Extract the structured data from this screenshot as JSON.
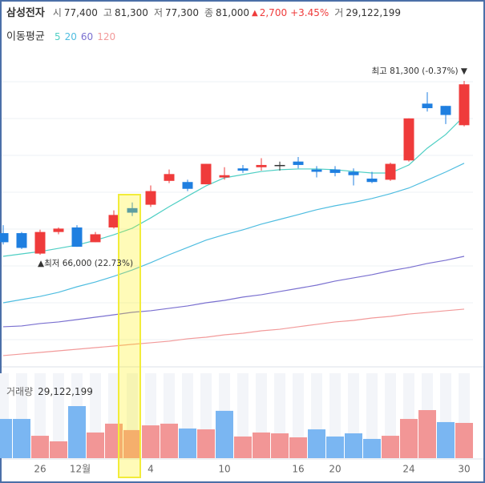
{
  "chart_data": {
    "type": "candlestick",
    "title": "삼성전자",
    "header": [
      {
        "label": "시",
        "value": "77,400"
      },
      {
        "label": "고",
        "value": "81,300"
      },
      {
        "label": "저",
        "value": "77,300"
      },
      {
        "label": "종",
        "value": "81,000"
      }
    ],
    "change": {
      "arrow": "▲",
      "amount": "2,700",
      "percent": "+3.45%"
    },
    "header_volume": {
      "label": "거",
      "value": "29,122,199"
    },
    "ma_label": "이동평균",
    "categories": [
      null,
      null,
      "26",
      null,
      "12월",
      null,
      null,
      null,
      "4",
      null,
      null,
      null,
      "10",
      null,
      null,
      null,
      "16",
      null,
      "20",
      null,
      null,
      null,
      "24",
      null,
      null,
      "30"
    ],
    "open": [
      67900,
      67900,
      66100,
      68000,
      68400,
      67100,
      68400,
      70100,
      70400,
      72500,
      72400,
      72200,
      72800,
      73600,
      73700,
      73900,
      74200,
      73500,
      73500,
      73300,
      72700,
      72600,
      74300,
      79300,
      79100,
      77400
    ],
    "high": [
      68600,
      68000,
      68200,
      68400,
      68600,
      68000,
      69900,
      70600,
      72100,
      73500,
      72600,
      74000,
      73700,
      73900,
      74500,
      74200,
      74600,
      73800,
      73800,
      73600,
      73300,
      74100,
      78000,
      80300,
      79100,
      81300
    ],
    "low": [
      66900,
      66500,
      66000,
      67800,
      66700,
      67100,
      68300,
      69400,
      70200,
      72300,
      71600,
      72200,
      72600,
      73200,
      73400,
      73400,
      73600,
      72800,
      72900,
      72100,
      72300,
      72500,
      74200,
      78600,
      77500,
      77300
    ],
    "close": [
      67100,
      66600,
      68000,
      68300,
      66700,
      67800,
      69500,
      69700,
      71600,
      73100,
      71800,
      74000,
      73000,
      73400,
      73900,
      73900,
      73900,
      73300,
      73200,
      73000,
      72400,
      74000,
      78000,
      78900,
      78300,
      81000
    ],
    "up_color": "#ef3b3b",
    "down_color": "#1f7fe0",
    "flat_color": "#333333",
    "series": [
      {
        "name": "5",
        "color": "#4fcfc4",
        "values": [
          65860,
          66070,
          66280,
          66560,
          66850,
          67270,
          67760,
          68330,
          69240,
          70230,
          71150,
          72060,
          72770,
          73050,
          73330,
          73480,
          73550,
          73550,
          73480,
          73330,
          73190,
          73190,
          73900,
          75380,
          76580,
          78200
        ]
      },
      {
        "name": "20",
        "color": "#4fbde0",
        "values": [
          61770,
          62050,
          62330,
          62690,
          63180,
          63600,
          64100,
          64660,
          65300,
          66000,
          66640,
          67280,
          67770,
          68190,
          68690,
          69110,
          69530,
          69960,
          70310,
          70600,
          70950,
          71370,
          71870,
          72570,
          73280,
          74050
        ]
      },
      {
        "name": "60",
        "color": "#7a70d0",
        "values": [
          59660,
          59730,
          59940,
          60080,
          60290,
          60500,
          60710,
          60930,
          61070,
          61280,
          61490,
          61770,
          61980,
          62270,
          62480,
          62760,
          63040,
          63320,
          63680,
          63960,
          64240,
          64590,
          64870,
          65230,
          65510,
          65860
        ]
      },
      {
        "name": "120",
        "color": "#f29a9a",
        "values": [
          57120,
          57260,
          57400,
          57540,
          57680,
          57820,
          57960,
          58110,
          58250,
          58390,
          58600,
          58740,
          58950,
          59090,
          59300,
          59440,
          59660,
          59870,
          60080,
          60220,
          60430,
          60570,
          60780,
          60920,
          61070,
          61210
        ]
      }
    ],
    "volume": {
      "label": "거래량",
      "value_label": "29,122,199",
      "values": [
        32400000,
        32400000,
        18500000,
        13900000,
        43000000,
        21200000,
        28500000,
        23200000,
        27100000,
        28500000,
        24500000,
        23800000,
        39100000,
        17900000,
        21200000,
        20500000,
        17200000,
        23800000,
        17900000,
        20500000,
        15900000,
        18500000,
        32400000,
        39700000,
        29800000,
        29122199
      ],
      "up_color": "#f29696",
      "down_color": "#7ab6f2"
    },
    "annotations": {
      "high": "최고 81,300 (-0.37%) ▼",
      "low": "▲최저 66,000 (22.73%)"
    }
  }
}
